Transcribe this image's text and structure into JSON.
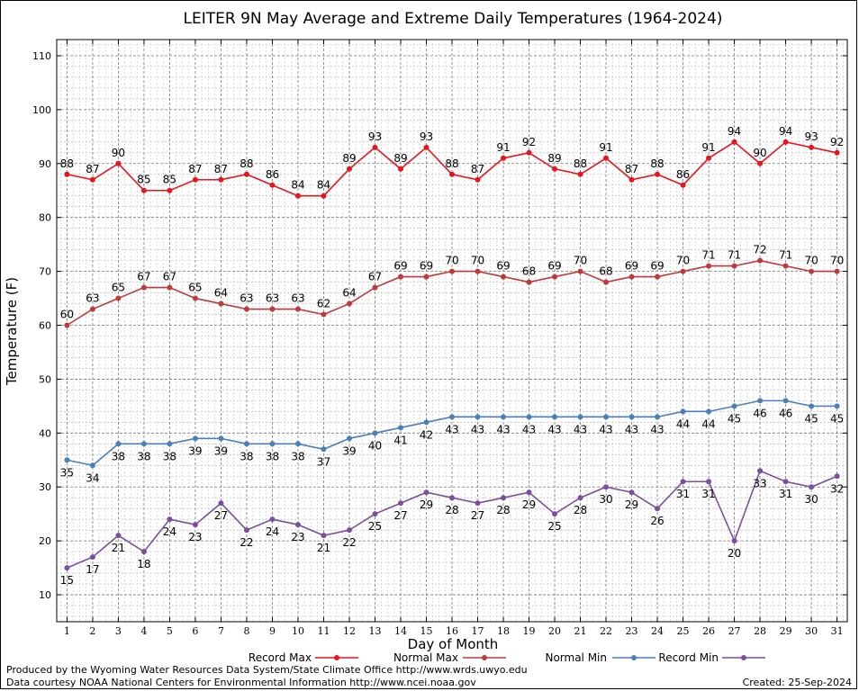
{
  "chart_data": {
    "type": "line",
    "title": "LEITER 9N May Average and Extreme Daily Temperatures (1964-2024)",
    "xlabel": "Day of Month",
    "ylabel": "Temperature (F)",
    "x": [
      1,
      2,
      3,
      4,
      5,
      6,
      7,
      8,
      9,
      10,
      11,
      12,
      13,
      14,
      15,
      16,
      17,
      18,
      19,
      20,
      21,
      22,
      23,
      24,
      25,
      26,
      27,
      28,
      29,
      30,
      31
    ],
    "xlim": [
      0.6,
      31.4
    ],
    "ylim": [
      5,
      113
    ],
    "y_ticks": [
      10,
      20,
      30,
      40,
      50,
      60,
      70,
      80,
      90,
      100,
      110
    ],
    "grid": true,
    "legend_position": "bottom",
    "series": [
      {
        "name": "Record Max",
        "color": "#e8141e",
        "label_pos": "above",
        "values": [
          88,
          87,
          90,
          85,
          85,
          87,
          87,
          88,
          86,
          84,
          84,
          89,
          93,
          89,
          93,
          88,
          87,
          91,
          92,
          89,
          88,
          91,
          87,
          88,
          86,
          91,
          94,
          90,
          94,
          93,
          92
        ]
      },
      {
        "name": "Normal Max",
        "color": "#c0393b",
        "label_pos": "above",
        "values": [
          60,
          63,
          65,
          67,
          67,
          65,
          64,
          63,
          63,
          63,
          62,
          64,
          67,
          69,
          69,
          70,
          70,
          69,
          68,
          69,
          70,
          68,
          69,
          69,
          70,
          71,
          71,
          72,
          71,
          70,
          70
        ]
      },
      {
        "name": "Normal Min",
        "color": "#4a7fb8",
        "label_pos": "below",
        "values": [
          35,
          34,
          38,
          38,
          38,
          39,
          39,
          38,
          38,
          38,
          37,
          39,
          40,
          41,
          42,
          43,
          43,
          43,
          43,
          43,
          43,
          43,
          43,
          43,
          44,
          44,
          45,
          46,
          46,
          45,
          45
        ]
      },
      {
        "name": "Record Min",
        "color": "#7b4f9c",
        "label_pos": "below",
        "values": [
          15,
          17,
          21,
          18,
          24,
          23,
          27,
          22,
          24,
          23,
          21,
          22,
          25,
          27,
          29,
          28,
          27,
          28,
          29,
          25,
          28,
          30,
          29,
          26,
          31,
          31,
          20,
          33,
          31,
          30,
          32
        ]
      }
    ]
  },
  "footer": {
    "produced_by": "Produced by the Wyoming Water Resources Data System/State Climate Office http://www.wrds.uwyo.edu",
    "data_courtesy": "Data courtesy NOAA National Centers for Environmental Information http://www.ncei.noaa.gov",
    "created": "Created:  25-Sep-2024"
  }
}
